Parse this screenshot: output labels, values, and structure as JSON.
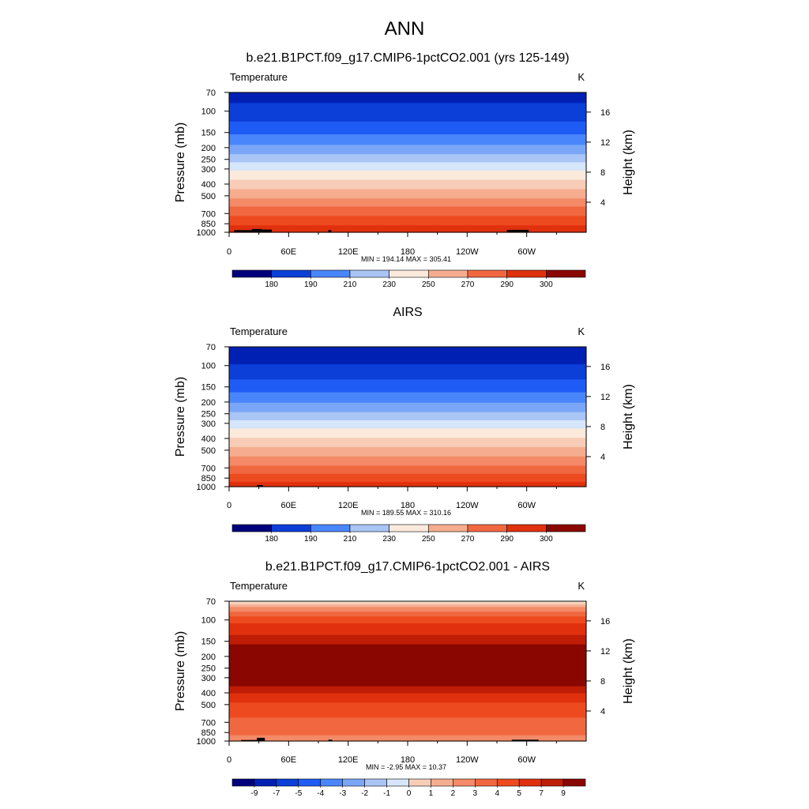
{
  "figure": {
    "title": "ANN"
  },
  "colors": {
    "abs_palette": [
      "#00007d",
      "#0020b4",
      "#0c3ed8",
      "#1f5cf5",
      "#4a86fb",
      "#7aa6f8",
      "#a9c5f5",
      "#d6e6fb",
      "#fbeadc",
      "#f8cdb8",
      "#f6ad8f",
      "#f48a67",
      "#f16840",
      "#ee4a20",
      "#e0310e",
      "#bf1d06",
      "#8a0600"
    ],
    "diff_palette": [
      "#00007d",
      "#0020b4",
      "#0c3ed8",
      "#1f5cf5",
      "#4a86fb",
      "#7aa6f8",
      "#a9c5f5",
      "#d6e6fb",
      "#fbeadc",
      "#f8cdb8",
      "#f6ad8f",
      "#f48a67",
      "#f16840",
      "#ee4a20",
      "#e0310e",
      "#bf1d06",
      "#8a0600"
    ],
    "land": "#000000"
  },
  "chart_data": [
    {
      "type": "heatmap",
      "title": "b.e21.B1PCT.f09_g17.CMIP6-1pctCO2.001 (yrs 125-149)",
      "left_label": "Temperature",
      "units": "K",
      "ylabel": "Pressure (mb)",
      "ylabel_right": "Height (km)",
      "stats": "MIN = 194.14  MAX = 305.41",
      "x_ticks": [
        "0",
        "60E",
        "120E",
        "180",
        "120W",
        "60W"
      ],
      "x_tick_lon": [
        0,
        60,
        120,
        180,
        240,
        300
      ],
      "xlim": [
        0,
        360
      ],
      "y_ticks": [
        "70",
        "100",
        "150",
        "200",
        "250",
        "300",
        "400",
        "500",
        "700",
        "850",
        "1000"
      ],
      "y_tick_values": [
        70,
        100,
        150,
        200,
        250,
        300,
        400,
        500,
        700,
        850,
        1000
      ],
      "ylim": [
        70,
        1000
      ],
      "y_scale": "log",
      "height_ticks": [
        "4",
        "8",
        "12",
        "16"
      ],
      "height_tick_km": [
        4,
        8,
        12,
        16
      ],
      "colorbar_labels": [
        "180",
        "190",
        "210",
        "230",
        "250",
        "270",
        "290",
        "300"
      ],
      "profile_pressure": [
        70,
        100,
        150,
        200,
        250,
        300,
        400,
        500,
        600,
        700,
        850,
        925,
        1000
      ],
      "profile_value": [
        193,
        196,
        208,
        219,
        229,
        237,
        250,
        259,
        267,
        273,
        282,
        286,
        290
      ],
      "band_min": 180,
      "band_max": 305,
      "land_lon": [
        [
          5,
          23
        ],
        [
          23,
          33
        ],
        [
          33,
          43
        ],
        [
          100,
          103
        ],
        [
          280,
          302
        ]
      ],
      "land_top_mb": [
        960,
        940,
        950,
        960,
        955
      ]
    },
    {
      "type": "heatmap",
      "title": "AIRS",
      "left_label": "Temperature",
      "units": "K",
      "ylabel": "Pressure (mb)",
      "ylabel_right": "Height (km)",
      "stats": "MIN = 189.55  MAX = 310.16",
      "x_ticks": [
        "0",
        "60E",
        "120E",
        "180",
        "120W",
        "60W"
      ],
      "x_tick_lon": [
        0,
        60,
        120,
        180,
        240,
        300
      ],
      "xlim": [
        0,
        360
      ],
      "y_ticks": [
        "70",
        "100",
        "150",
        "200",
        "250",
        "300",
        "400",
        "500",
        "700",
        "850",
        "1000"
      ],
      "y_tick_values": [
        70,
        100,
        150,
        200,
        250,
        300,
        400,
        500,
        700,
        850,
        1000
      ],
      "ylim": [
        70,
        1000
      ],
      "y_scale": "log",
      "height_ticks": [
        "4",
        "8",
        "12",
        "16"
      ],
      "height_tick_km": [
        4,
        8,
        12,
        16
      ],
      "colorbar_labels": [
        "180",
        "190",
        "210",
        "230",
        "250",
        "270",
        "290",
        "300"
      ],
      "profile_pressure": [
        70,
        100,
        150,
        200,
        250,
        300,
        400,
        500,
        600,
        700,
        850,
        925,
        1000
      ],
      "profile_value": [
        192,
        195,
        206,
        216,
        226,
        234,
        247,
        256,
        264,
        270,
        279,
        284,
        288
      ],
      "band_min": 180,
      "band_max": 305,
      "land_lon": [
        [
          28,
          34
        ]
      ],
      "land_top_mb": [
        970
      ]
    },
    {
      "type": "heatmap",
      "title": "b.e21.B1PCT.f09_g17.CMIP6-1pctCO2.001 - AIRS",
      "left_label": "Temperature",
      "units": "K",
      "ylabel": "Pressure (mb)",
      "ylabel_right": "Height (km)",
      "stats": "MIN = -2.95  MAX = 10.37",
      "x_ticks": [
        "0",
        "60E",
        "120E",
        "180",
        "120W",
        "60W"
      ],
      "x_tick_lon": [
        0,
        60,
        120,
        180,
        240,
        300
      ],
      "xlim": [
        0,
        360
      ],
      "y_ticks": [
        "70",
        "100",
        "150",
        "200",
        "250",
        "300",
        "400",
        "500",
        "700",
        "850",
        "1000"
      ],
      "y_tick_values": [
        70,
        100,
        150,
        200,
        250,
        300,
        400,
        500,
        700,
        850,
        1000
      ],
      "ylim": [
        70,
        1000
      ],
      "y_scale": "log",
      "height_ticks": [
        "4",
        "8",
        "12",
        "16"
      ],
      "height_tick_km": [
        4,
        8,
        12,
        16
      ],
      "colorbar_labels": [
        "-9",
        "-7",
        "-5",
        "-4",
        "-3",
        "-2",
        "-1",
        "0",
        "1",
        "2",
        "3",
        "4",
        "5",
        "7",
        "9"
      ],
      "profile_pressure": [
        70,
        75,
        80,
        90,
        100,
        150,
        200,
        250,
        300,
        400,
        500,
        700,
        850,
        1000
      ],
      "profile_value": [
        0.3,
        1.5,
        3,
        4.5,
        5.5,
        7.5,
        9.5,
        9.5,
        9.2,
        7,
        5.5,
        4.5,
        4,
        3
      ],
      "band_min": -9,
      "band_max": 9,
      "land_lon": [
        [
          12,
          34
        ],
        [
          28,
          36
        ],
        [
          100,
          104
        ],
        [
          285,
          312
        ]
      ],
      "land_top_mb": [
        980,
        940,
        975,
        975
      ]
    }
  ]
}
